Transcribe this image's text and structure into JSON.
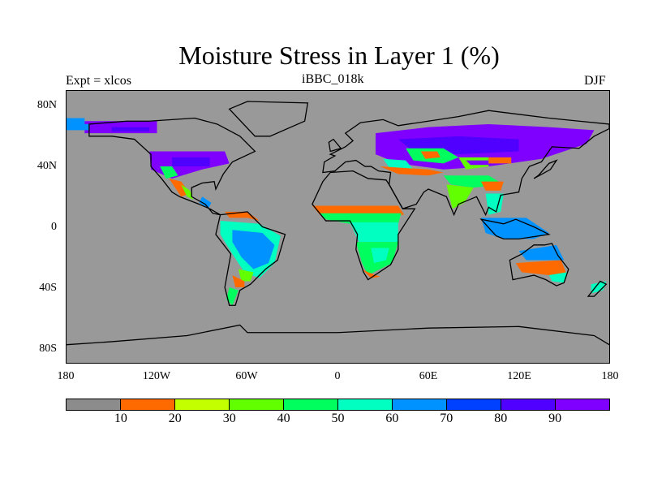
{
  "title": "Moisture Stress in Layer 1 (%)",
  "left_label": "Expt = xlcos",
  "center_label": "iBBC_018k",
  "right_label": "DJF",
  "y_ticks": [
    "80N",
    "40N",
    "0",
    "40S",
    "80S"
  ],
  "x_ticks": [
    "180",
    "120W",
    "60W",
    "0",
    "60E",
    "120E",
    "180"
  ],
  "colorbar": {
    "levels": [
      "10",
      "20",
      "30",
      "40",
      "50",
      "60",
      "70",
      "80",
      "90"
    ],
    "colors": [
      "#8c8c8c",
      "#ff6a00",
      "#c4ff00",
      "#62ff00",
      "#00ff5e",
      "#00ffc0",
      "#0092ff",
      "#0040ff",
      "#5000ff",
      "#8000ff"
    ]
  },
  "colors": {
    "background": "#999999",
    "coast": "#000000"
  }
}
